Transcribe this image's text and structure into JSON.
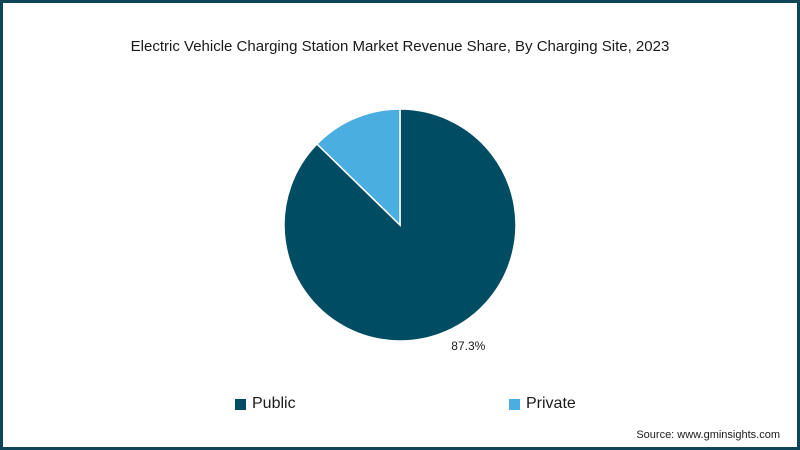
{
  "chart_data": {
    "type": "pie",
    "title": "Electric Vehicle Charging Station Market Revenue Share, By Charging Site, 2023",
    "categories": [
      "Public",
      "Private"
    ],
    "values": [
      87.3,
      12.7
    ],
    "colors": [
      "#004c63",
      "#4aaee0"
    ],
    "data_labels": [
      "87.3%",
      ""
    ],
    "legend": {
      "placement": "bottom"
    }
  },
  "source": "Source: www.gminsights.com"
}
